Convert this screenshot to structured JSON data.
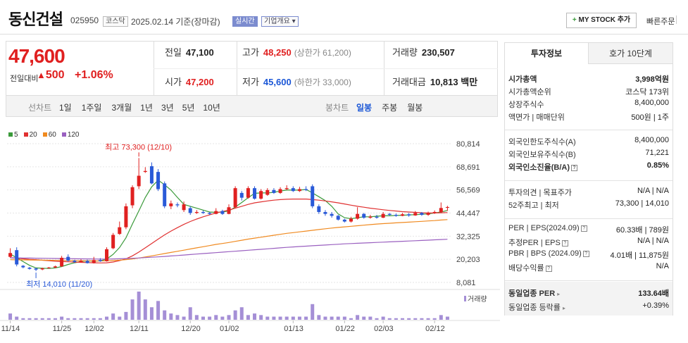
{
  "header": {
    "stock_name": "동신건설",
    "stock_code": "025950",
    "market_tag": "코스닥",
    "date": "2025.02.14 기준(장마감)",
    "realtime_tag": "실시간",
    "company_tag": "기업개요",
    "mystock_label": "MY STOCK 추가",
    "quick_order_label": "빠른주문"
  },
  "price": {
    "current": "47,600",
    "change_label": "전일대비",
    "change": "500",
    "change_pct": "+1.06%"
  },
  "quote": {
    "prev_label": "전일",
    "prev": "47,100",
    "high_label": "고가",
    "high": "48,250",
    "high_sub": "(상한가 61,200)",
    "volume_label": "거래량",
    "volume": "230,507",
    "open_label": "시가",
    "open": "47,200",
    "low_label": "저가",
    "low": "45,600",
    "low_sub": "(하한가 33,000)",
    "amount_label": "거래대금",
    "amount": "10,813",
    "amount_unit": "백만"
  },
  "period_bar": {
    "line_label": "선차트",
    "periods": [
      "1일",
      "1주일",
      "3개월",
      "1년",
      "3년",
      "5년",
      "10년"
    ],
    "candle_label": "봉차트",
    "candle_types": [
      "일봉",
      "주봉",
      "월봉"
    ],
    "active_candle": "일봉"
  },
  "legend": [
    {
      "label": "5",
      "color": "#3a9a3a"
    },
    {
      "label": "20",
      "color": "#e03030"
    },
    {
      "label": "60",
      "color": "#f08a20"
    },
    {
      "label": "120",
      "color": "#9a60c0"
    }
  ],
  "chart_data": {
    "type": "candlestick",
    "yaxis_ticks": [
      "80,814",
      "68,691",
      "56,569",
      "44,447",
      "32,325",
      "20,203",
      "8,081"
    ],
    "ylim": [
      8081,
      80814
    ],
    "x_labels": [
      "11/14",
      "11/25",
      "12/02",
      "12/11",
      "12/20",
      "01/02",
      "01/13",
      "01/22",
      "02/03",
      "02/12"
    ],
    "high_annotation": "최고 73,300 (12/10)",
    "low_annotation": "최저 14,010 (11/20)",
    "volume_label": "거래량",
    "candles": [
      {
        "o": 21500,
        "c": 23500,
        "h": 26000,
        "l": 21000
      },
      {
        "o": 25000,
        "c": 17500,
        "h": 26500,
        "l": 16500
      },
      {
        "o": 16800,
        "c": 16000,
        "h": 17200,
        "l": 15500
      },
      {
        "o": 15800,
        "c": 15200,
        "h": 16200,
        "l": 14800
      },
      {
        "o": 15400,
        "c": 14800,
        "h": 15800,
        "l": 14010
      },
      {
        "o": 14900,
        "c": 15500,
        "h": 15800,
        "l": 14500
      },
      {
        "o": 15600,
        "c": 15900,
        "h": 16200,
        "l": 15300
      },
      {
        "o": 15900,
        "c": 16500,
        "h": 16900,
        "l": 15600
      },
      {
        "o": 16500,
        "c": 21000,
        "h": 22000,
        "l": 16200
      },
      {
        "o": 21500,
        "c": 19500,
        "h": 22800,
        "l": 19000
      },
      {
        "o": 19500,
        "c": 18800,
        "h": 20000,
        "l": 18200
      },
      {
        "o": 18800,
        "c": 19400,
        "h": 20200,
        "l": 18500
      },
      {
        "o": 19400,
        "c": 18200,
        "h": 20000,
        "l": 18000
      },
      {
        "o": 18200,
        "c": 19800,
        "h": 21500,
        "l": 18000
      },
      {
        "o": 19800,
        "c": 19200,
        "h": 20800,
        "l": 18900
      },
      {
        "o": 19200,
        "c": 25500,
        "h": 26500,
        "l": 19000
      },
      {
        "o": 26000,
        "c": 33000,
        "h": 34000,
        "l": 25500
      },
      {
        "o": 33500,
        "c": 37000,
        "h": 40000,
        "l": 33000
      },
      {
        "o": 37000,
        "c": 48000,
        "h": 49500,
        "l": 36000
      },
      {
        "o": 48500,
        "c": 58000,
        "h": 59000,
        "l": 47000
      },
      {
        "o": 58500,
        "c": 64000,
        "h": 73300,
        "l": 57000
      },
      {
        "o": 66000,
        "c": 66500,
        "h": 68500,
        "l": 65500
      },
      {
        "o": 69000,
        "c": 60000,
        "h": 71000,
        "l": 59500
      },
      {
        "o": 66000,
        "c": 57000,
        "h": 67500,
        "l": 56000
      },
      {
        "o": 60000,
        "c": 48000,
        "h": 61000,
        "l": 47000
      },
      {
        "o": 48000,
        "c": 49500,
        "h": 51000,
        "l": 46500
      },
      {
        "o": 49000,
        "c": 48500,
        "h": 50000,
        "l": 47500
      },
      {
        "o": 46000,
        "c": 49000,
        "h": 50500,
        "l": 45000
      },
      {
        "o": 47000,
        "c": 44500,
        "h": 48000,
        "l": 43500
      },
      {
        "o": 44500,
        "c": 45000,
        "h": 46000,
        "l": 44000
      },
      {
        "o": 45000,
        "c": 44500,
        "h": 45800,
        "l": 44000
      },
      {
        "o": 44500,
        "c": 44000,
        "h": 45000,
        "l": 43500
      },
      {
        "o": 44000,
        "c": 45500,
        "h": 47000,
        "l": 43800
      },
      {
        "o": 45500,
        "c": 44000,
        "h": 46200,
        "l": 43500
      },
      {
        "o": 44000,
        "c": 47500,
        "h": 49000,
        "l": 43800
      },
      {
        "o": 47500,
        "c": 57500,
        "h": 58500,
        "l": 47000
      },
      {
        "o": 55000,
        "c": 52500,
        "h": 56000,
        "l": 51000
      },
      {
        "o": 52500,
        "c": 57500,
        "h": 58500,
        "l": 52000
      },
      {
        "o": 57500,
        "c": 52000,
        "h": 58500,
        "l": 51500
      },
      {
        "o": 52000,
        "c": 56000,
        "h": 57000,
        "l": 51500
      },
      {
        "o": 54000,
        "c": 56500,
        "h": 57500,
        "l": 53500
      },
      {
        "o": 56500,
        "c": 55000,
        "h": 57500,
        "l": 54500
      },
      {
        "o": 55000,
        "c": 57000,
        "h": 58000,
        "l": 54500
      },
      {
        "o": 57000,
        "c": 57500,
        "h": 59000,
        "l": 56500
      },
      {
        "o": 57500,
        "c": 56000,
        "h": 58500,
        "l": 55500
      },
      {
        "o": 56000,
        "c": 57000,
        "h": 58200,
        "l": 55500
      },
      {
        "o": 57000,
        "c": 56500,
        "h": 58500,
        "l": 56000
      },
      {
        "o": 58500,
        "c": 48000,
        "h": 59500,
        "l": 47000
      },
      {
        "o": 48000,
        "c": 45000,
        "h": 49000,
        "l": 44000
      },
      {
        "o": 45000,
        "c": 44000,
        "h": 46000,
        "l": 43000
      },
      {
        "o": 44000,
        "c": 43000,
        "h": 45000,
        "l": 42000
      },
      {
        "o": 43000,
        "c": 41000,
        "h": 43500,
        "l": 40500
      },
      {
        "o": 41000,
        "c": 40000,
        "h": 41500,
        "l": 39500
      },
      {
        "o": 40000,
        "c": 41500,
        "h": 42500,
        "l": 39500
      },
      {
        "o": 41500,
        "c": 44000,
        "h": 47500,
        "l": 41000
      },
      {
        "o": 44000,
        "c": 42000,
        "h": 44500,
        "l": 41500
      },
      {
        "o": 42000,
        "c": 42500,
        "h": 43500,
        "l": 41500
      },
      {
        "o": 42500,
        "c": 42000,
        "h": 43500,
        "l": 41500
      },
      {
        "o": 42000,
        "c": 44000,
        "h": 45000,
        "l": 41800
      },
      {
        "o": 44000,
        "c": 43500,
        "h": 44500,
        "l": 43000
      },
      {
        "o": 43500,
        "c": 43000,
        "h": 44200,
        "l": 42500
      },
      {
        "o": 43000,
        "c": 43800,
        "h": 44500,
        "l": 42800
      },
      {
        "o": 43800,
        "c": 43200,
        "h": 44500,
        "l": 42500
      },
      {
        "o": 43200,
        "c": 44500,
        "h": 45500,
        "l": 43000
      },
      {
        "o": 44500,
        "c": 43500,
        "h": 45000,
        "l": 43000
      },
      {
        "o": 43500,
        "c": 44500,
        "h": 45200,
        "l": 43000
      },
      {
        "o": 44500,
        "c": 45000,
        "h": 45800,
        "l": 44000
      },
      {
        "o": 45000,
        "c": 47100,
        "h": 50000,
        "l": 44500
      },
      {
        "o": 47200,
        "c": 47600,
        "h": 48250,
        "l": 45600
      }
    ],
    "volumes": [
      4,
      2,
      1,
      1,
      1,
      1,
      1,
      1,
      2,
      1,
      1,
      1,
      1,
      1,
      1,
      2,
      4,
      2,
      5,
      13,
      18,
      13,
      8,
      12,
      6,
      4,
      3,
      2,
      8,
      3,
      2,
      2,
      3,
      2,
      3,
      6,
      8,
      3,
      4,
      3,
      2,
      2,
      2,
      2,
      2,
      2,
      2,
      10,
      3,
      2,
      2,
      2,
      2,
      1,
      3,
      2,
      2,
      1,
      2,
      1,
      1,
      1,
      1,
      1,
      1,
      1,
      1,
      3,
      2
    ],
    "ma": {
      "ma5": [
        23000,
        21000,
        19000,
        17000,
        15700,
        15500,
        15400,
        15700,
        16400,
        17500,
        18400,
        19000,
        19400,
        19200,
        19400,
        20300,
        22800,
        26400,
        31500,
        38700,
        45600,
        52600,
        58200,
        61700,
        59300,
        56500,
        52600,
        49000,
        48000,
        47000,
        46000,
        45000,
        44800,
        45000,
        45500,
        47600,
        50000,
        52500,
        54800,
        55000,
        55000,
        55300,
        56000,
        56500,
        56500,
        56500,
        56800,
        55000,
        53000,
        51000,
        48000,
        44000,
        42000,
        41500,
        42000,
        42500,
        42500,
        42800,
        43000,
        43000,
        43200,
        43300,
        43500,
        43600,
        43800,
        44000,
        44500,
        45000,
        45800
      ],
      "ma20": [
        21000,
        20800,
        20500,
        20200,
        20000,
        19700,
        19500,
        19200,
        19000,
        18900,
        18700,
        18600,
        18500,
        18400,
        18300,
        18400,
        18800,
        19500,
        20500,
        22000,
        24000,
        26200,
        28500,
        30800,
        33000,
        35000,
        36800,
        38500,
        40000,
        41300,
        42500,
        43500,
        44500,
        45300,
        46000,
        47000,
        48000,
        49000,
        49800,
        50300,
        50800,
        51200,
        51500,
        51700,
        51800,
        51800,
        51800,
        51500,
        51200,
        50800,
        50300,
        49800,
        49200,
        48600,
        48000,
        47500,
        47000,
        46600,
        46200,
        45800,
        45500,
        45200,
        45000,
        44800,
        44600,
        44500,
        44500,
        44600,
        44700
      ],
      "ma60": [
        20000,
        19950,
        19900,
        19850,
        19800,
        19750,
        19700,
        19650,
        19600,
        19550,
        19500,
        19450,
        19400,
        19380,
        19360,
        19400,
        19550,
        19750,
        20000,
        20400,
        20900,
        21400,
        22000,
        22600,
        23200,
        23800,
        24400,
        25000,
        25600,
        26200,
        26800,
        27400,
        28000,
        28500,
        29000,
        29600,
        30200,
        30800,
        31300,
        31800,
        32300,
        32800,
        33300,
        33800,
        34200,
        34600,
        35000,
        35400,
        35800,
        36200,
        36600,
        36900,
        37200,
        37500,
        37800,
        38100,
        38400,
        38700,
        38900,
        39100,
        39300,
        39500,
        39700,
        39900,
        40100,
        40300,
        40500,
        40800,
        41000
      ],
      "ma120": [
        21000,
        20950,
        20900,
        20850,
        20800,
        20750,
        20700,
        20650,
        20600,
        20550,
        20500,
        20450,
        20400,
        20360,
        20320,
        20330,
        20400,
        20500,
        20600,
        20750,
        20900,
        21100,
        21300,
        21500,
        21700,
        21950,
        22200,
        22450,
        22700,
        22950,
        23200,
        23450,
        23700,
        23950,
        24200,
        24450,
        24700,
        24950,
        25200,
        25450,
        25700,
        25950,
        26200,
        26450,
        26700,
        26900,
        27100,
        27300,
        27500,
        27700,
        27900,
        28100,
        28300,
        28450,
        28600,
        28750,
        28900,
        29050,
        29200,
        29350,
        29500,
        29650,
        29800,
        29950,
        30100,
        30250,
        30400,
        30550,
        30700
      ]
    }
  },
  "panel": {
    "tab_info": "투자정보",
    "tab_hoga": "호가 10단계",
    "rows1": [
      {
        "k": "시가총액",
        "v": "3,998억원",
        "bold": true
      },
      {
        "k": "시가총액순위",
        "v": "코스닥 173위"
      },
      {
        "k": "상장주식수",
        "v": "8,400,000"
      },
      {
        "k": "액면가 | 매매단위",
        "v": "500원 | 1주"
      }
    ],
    "rows2": [
      {
        "k": "외국인한도주식수(A)",
        "v": "8,400,000"
      },
      {
        "k": "외국인보유주식수(B)",
        "v": "71,221"
      },
      {
        "k": "외국인소진율(B/A)",
        "v": "0.85%",
        "bold": true
      }
    ],
    "rows3": [
      {
        "k": "투자의견 | 목표주가",
        "v": "N/A | N/A"
      },
      {
        "k": "52주최고 | 최저",
        "v": "73,300 | 14,010"
      }
    ],
    "rows4": [
      {
        "k": "PER | EPS(2024.09)",
        "v": "60.33배 | 789원"
      },
      {
        "k": "추정PER | EPS",
        "v": "N/A | N/A"
      },
      {
        "k": "PBR | BPS (2024.09)",
        "v": "4.01배 | 11,875원"
      },
      {
        "k": "배당수익률",
        "v": "N/A"
      }
    ],
    "peer_per_label": "동일업종 PER",
    "peer_per": "133.64배",
    "peer_chg_label": "동일업종 등락률",
    "peer_chg": "+0.39%"
  }
}
